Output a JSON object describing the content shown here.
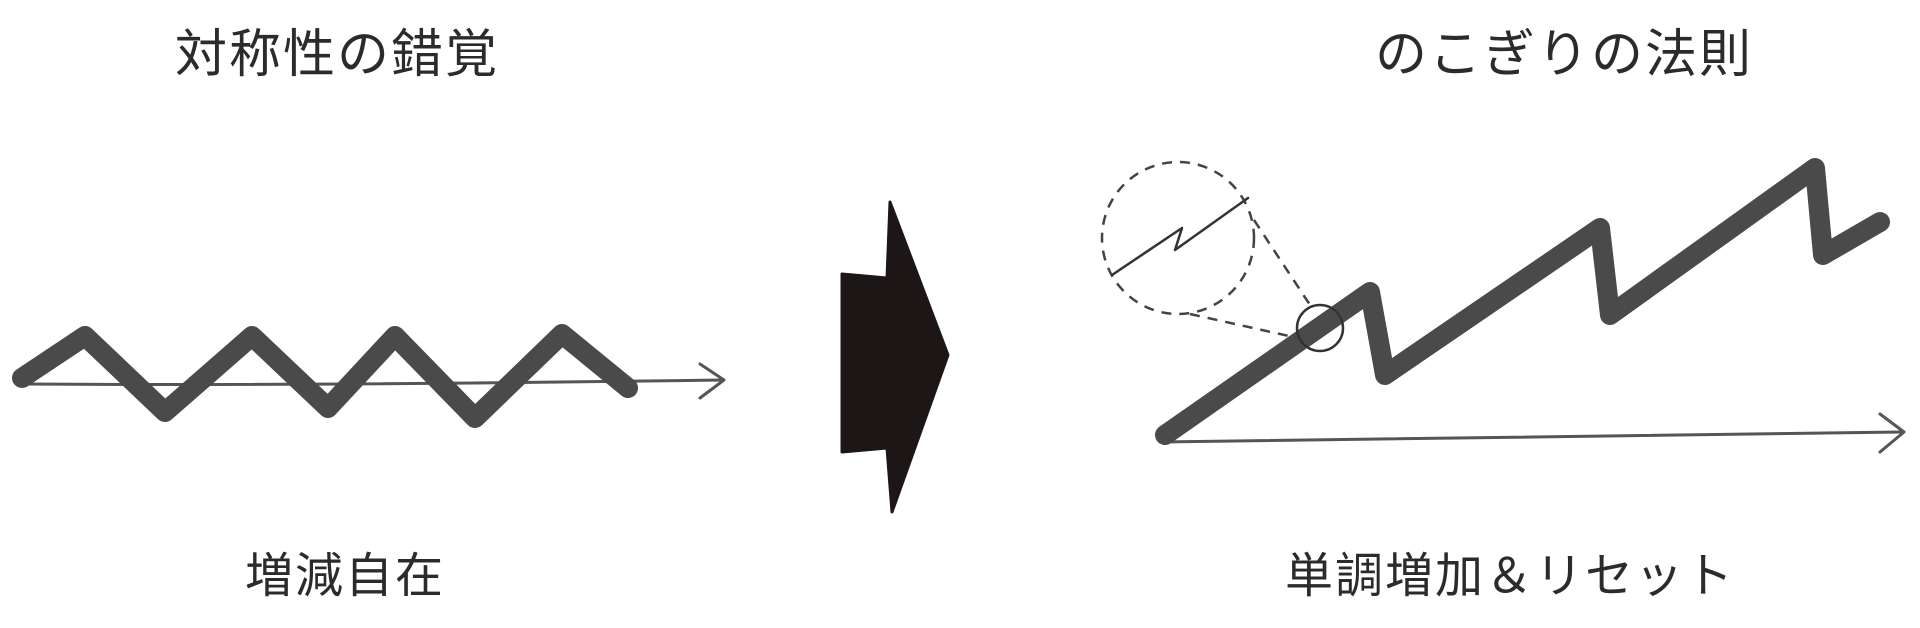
{
  "left": {
    "title": "対称性の錯覚",
    "caption": "増減自在"
  },
  "right": {
    "title": "のこぎりの法則",
    "caption": "単調増加＆リセット"
  },
  "colors": {
    "stroke": "#4a4a4a",
    "ink": "#1c1616",
    "text": "#2b2b2b"
  }
}
